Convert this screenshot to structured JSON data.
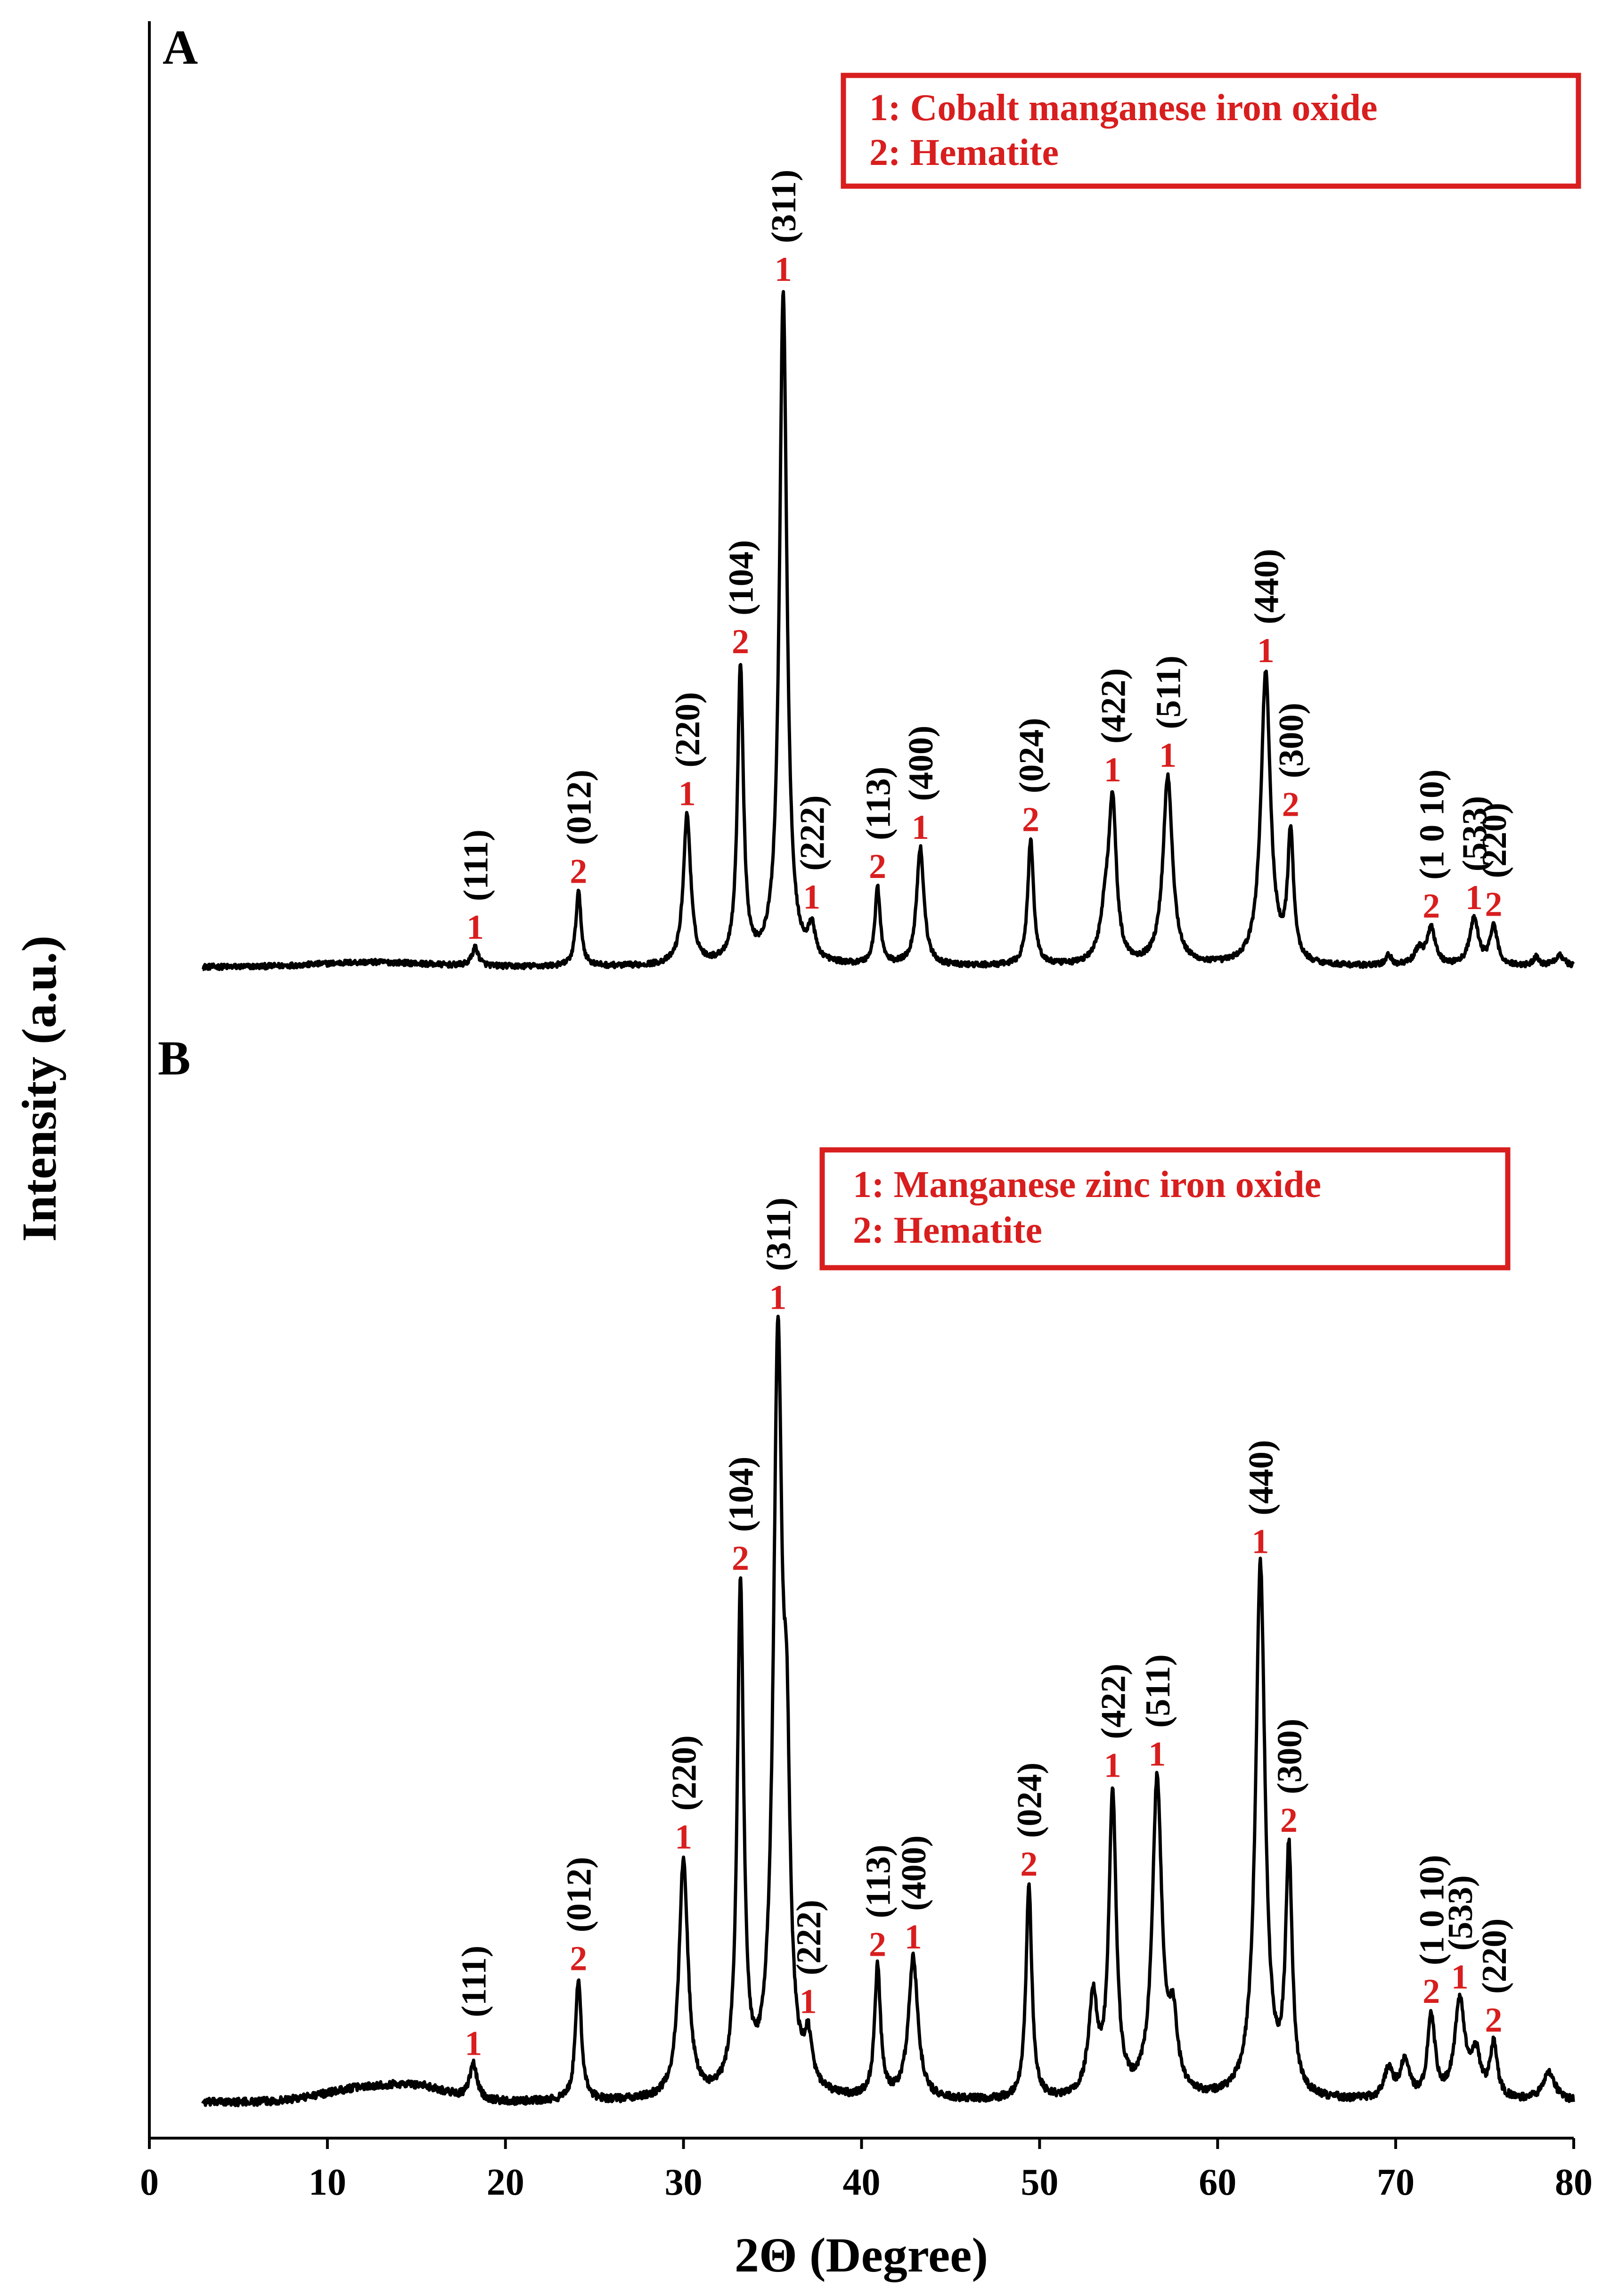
{
  "colors": {
    "line": "#000000",
    "accent": "#d81e1e",
    "background": "#ffffff"
  },
  "axes": {
    "xlabel": "2Θ (Degree)",
    "ylabel": "Intensity (a.u.)",
    "xlim": [
      0,
      80
    ],
    "xticks": [
      "0",
      "10",
      "20",
      "30",
      "40",
      "50",
      "60",
      "70",
      "80"
    ],
    "yticks_shown": false
  },
  "chart_data": [
    {
      "type": "line",
      "panel": "A",
      "legend": [
        "1: Cobalt manganese iron oxide",
        "2: Hematite"
      ],
      "xlim": [
        3,
        80
      ],
      "ylim": [
        0,
        100
      ],
      "baseline": 0.5,
      "noise": 0.35,
      "broad_humps": [
        {
          "x": 12.5,
          "h": 0.6,
          "w": 3.0
        }
      ],
      "peaks": [
        {
          "x": 18.3,
          "h": 2.4,
          "w": 0.22,
          "phase": "1",
          "hkl": "(111)"
        },
        {
          "x": 24.1,
          "h": 9.7,
          "w": 0.18,
          "phase": "2",
          "hkl": "(012)"
        },
        {
          "x": 30.2,
          "h": 19.5,
          "w": 0.25,
          "phase": "1",
          "hkl": "(220)"
        },
        {
          "x": 33.2,
          "h": 38.5,
          "w": 0.2,
          "phase": "2",
          "hkl": "(104)"
        },
        {
          "x": 35.6,
          "h": 87.5,
          "w": 0.25,
          "phase": "1",
          "hkl": "(311)"
        },
        {
          "x": 37.2,
          "h": 4.2,
          "w": 0.22,
          "phase": "1",
          "hkl": "(222)"
        },
        {
          "x": 40.9,
          "h": 10.0,
          "w": 0.18,
          "phase": "2",
          "hkl": "(113)"
        },
        {
          "x": 43.3,
          "h": 15.3,
          "w": 0.25,
          "phase": "1",
          "hkl": "(400)"
        },
        {
          "x": 49.5,
          "h": 16.3,
          "w": 0.2,
          "phase": "2",
          "hkl": "(024)"
        },
        {
          "x": 53.7,
          "h": 6.0,
          "w": 0.35,
          "phase": "",
          "hkl": ""
        },
        {
          "x": 54.1,
          "h": 20.0,
          "w": 0.25,
          "phase": "1",
          "hkl": "(422)"
        },
        {
          "x": 57.2,
          "h": 24.5,
          "w": 0.32,
          "phase": "1",
          "hkl": "(511)"
        },
        {
          "x": 62.7,
          "h": 38.0,
          "w": 0.32,
          "phase": "1",
          "hkl": "(440)"
        },
        {
          "x": 64.1,
          "h": 16.5,
          "w": 0.2,
          "phase": "2",
          "hkl": "(300)"
        },
        {
          "x": 71.3,
          "h": 2.0,
          "w": 0.3,
          "phase": "",
          "hkl": ""
        },
        {
          "x": 72.0,
          "h": 4.8,
          "w": 0.28,
          "phase": "2",
          "hkl": "(1 0 10)"
        },
        {
          "x": 74.4,
          "h": 6.0,
          "w": 0.3,
          "phase": "1",
          "hkl": "(533)"
        },
        {
          "x": 75.5,
          "h": 5.0,
          "w": 0.25,
          "phase": "2",
          "hkl": "(220)"
        },
        {
          "x": 69.6,
          "h": 1.3,
          "w": 0.2,
          "phase": "",
          "hkl": ""
        },
        {
          "x": 77.9,
          "h": 1.2,
          "w": 0.2,
          "phase": "",
          "hkl": ""
        },
        {
          "x": 79.2,
          "h": 1.5,
          "w": 0.3,
          "phase": "",
          "hkl": ""
        }
      ]
    },
    {
      "type": "line",
      "panel": "B",
      "legend": [
        "1: Manganese zinc iron oxide",
        "2: Hematite"
      ],
      "xlim": [
        3,
        80
      ],
      "ylim": [
        0,
        100
      ],
      "baseline": 0.5,
      "noise": 0.45,
      "broad_humps": [
        {
          "x": 12.5,
          "h": 1.8,
          "w": 2.5
        },
        {
          "x": 15.5,
          "h": 1.0,
          "w": 1.5
        }
      ],
      "peaks": [
        {
          "x": 18.2,
          "h": 4.2,
          "w": 0.25,
          "phase": "1",
          "hkl": "(111)"
        },
        {
          "x": 24.1,
          "h": 14.5,
          "w": 0.2,
          "phase": "2",
          "hkl": "(012)"
        },
        {
          "x": 30.0,
          "h": 28.5,
          "w": 0.3,
          "phase": "1",
          "hkl": "(220)"
        },
        {
          "x": 33.2,
          "h": 60.0,
          "w": 0.22,
          "phase": "2",
          "hkl": "(104)"
        },
        {
          "x": 35.3,
          "h": 87.5,
          "w": 0.3,
          "phase": "1",
          "hkl": "(311)"
        },
        {
          "x": 35.8,
          "h": 30.0,
          "w": 0.22,
          "phase": "",
          "hkl": ""
        },
        {
          "x": 37.0,
          "h": 5.6,
          "w": 0.25,
          "phase": "1",
          "hkl": "(222)"
        },
        {
          "x": 40.9,
          "h": 15.5,
          "w": 0.2,
          "phase": "2",
          "hkl": "(113)"
        },
        {
          "x": 42.9,
          "h": 16.8,
          "w": 0.32,
          "phase": "1",
          "hkl": "(400)"
        },
        {
          "x": 49.4,
          "h": 25.5,
          "w": 0.2,
          "phase": "2",
          "hkl": "(024)"
        },
        {
          "x": 53.0,
          "h": 11.5,
          "w": 0.3,
          "phase": "",
          "hkl": ""
        },
        {
          "x": 54.1,
          "h": 36.0,
          "w": 0.25,
          "phase": "1",
          "hkl": "(422)"
        },
        {
          "x": 56.6,
          "h": 37.5,
          "w": 0.32,
          "phase": "1",
          "hkl": "(511)"
        },
        {
          "x": 57.5,
          "h": 8.0,
          "w": 0.3,
          "phase": "",
          "hkl": ""
        },
        {
          "x": 62.4,
          "h": 63.5,
          "w": 0.32,
          "phase": "1",
          "hkl": "(440)"
        },
        {
          "x": 64.0,
          "h": 28.5,
          "w": 0.22,
          "phase": "2",
          "hkl": "(300)"
        },
        {
          "x": 69.6,
          "h": 3.5,
          "w": 0.3,
          "phase": "",
          "hkl": ""
        },
        {
          "x": 70.5,
          "h": 4.5,
          "w": 0.3,
          "phase": "",
          "hkl": ""
        },
        {
          "x": 72.0,
          "h": 9.8,
          "w": 0.25,
          "phase": "2",
          "hkl": "(1 0 10)"
        },
        {
          "x": 73.6,
          "h": 11.5,
          "w": 0.35,
          "phase": "1",
          "hkl": "(533)"
        },
        {
          "x": 74.5,
          "h": 5.0,
          "w": 0.3,
          "phase": "",
          "hkl": ""
        },
        {
          "x": 75.5,
          "h": 6.4,
          "w": 0.25,
          "phase": "2",
          "hkl": "(220)"
        },
        {
          "x": 78.6,
          "h": 3.5,
          "w": 0.4,
          "phase": "",
          "hkl": ""
        }
      ]
    }
  ]
}
